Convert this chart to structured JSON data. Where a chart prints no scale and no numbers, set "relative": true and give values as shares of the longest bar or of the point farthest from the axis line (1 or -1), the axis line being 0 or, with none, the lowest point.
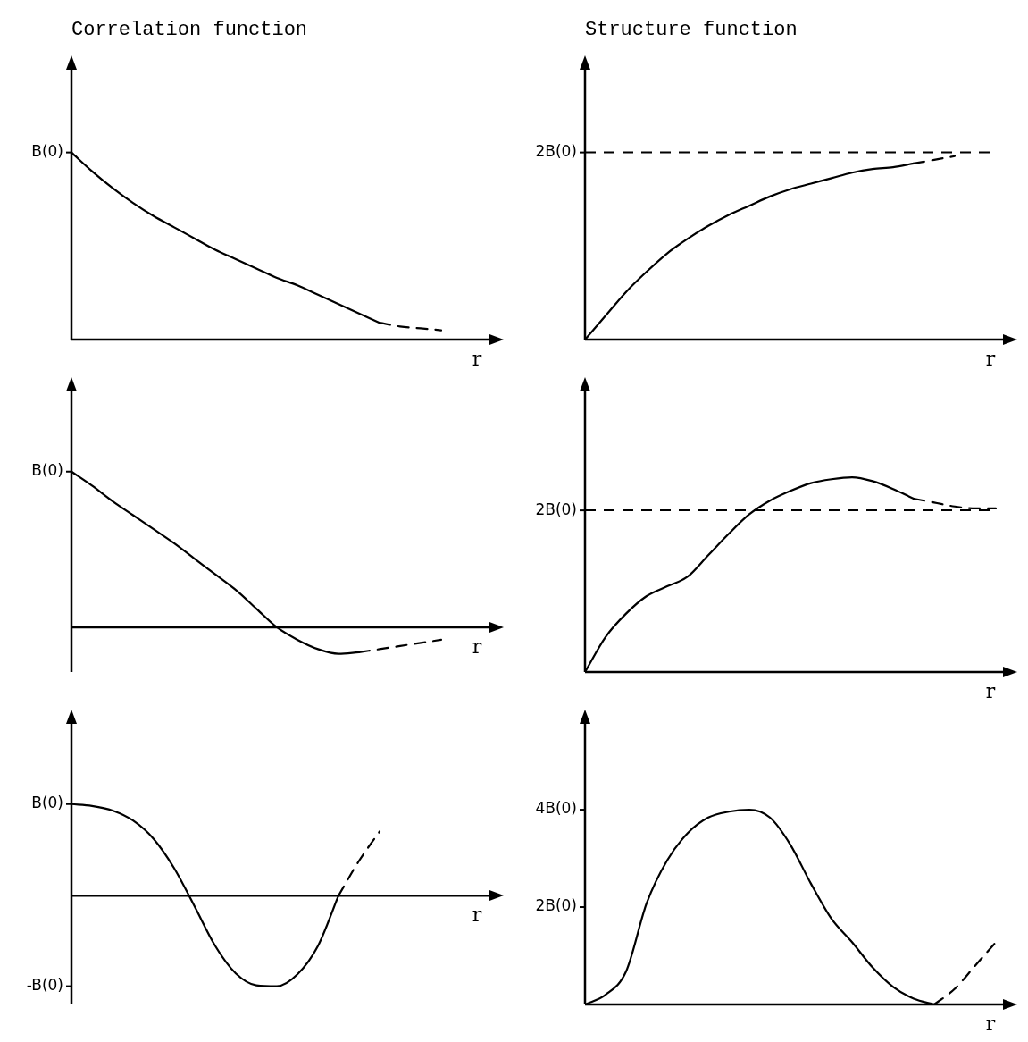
{
  "chart_data": [
    {
      "type": "line",
      "title": "Correlation function",
      "xlabel": "r",
      "relative": true,
      "categories": [
        null,
        null,
        null,
        null,
        null,
        null,
        null,
        null,
        null,
        null,
        null,
        null,
        null,
        null,
        null,
        null,
        null,
        null,
        null,
        null,
        null
      ],
      "series": [
        {
          "color": "#000000",
          "line_style": "solid",
          "values": [
            1.0,
            0.9,
            0.81,
            0.73,
            0.66,
            0.6,
            0.54,
            0.48,
            0.43,
            0.38,
            0.33,
            0.29,
            0.24,
            0.19,
            0.14,
            0.09,
            null,
            null,
            null,
            null,
            null
          ]
        },
        {
          "color": "#000000",
          "line_style": "dashed",
          "values": [
            null,
            null,
            null,
            null,
            null,
            null,
            null,
            null,
            null,
            null,
            null,
            null,
            null,
            null,
            null,
            0.09,
            0.07,
            0.06,
            0.05,
            null,
            null
          ]
        }
      ],
      "annotations": [
        "B(0)"
      ]
    },
    {
      "type": "line",
      "title": "Structure function",
      "xlabel": "r",
      "relative": true,
      "categories": [
        null,
        null,
        null,
        null,
        null,
        null,
        null,
        null,
        null,
        null,
        null,
        null,
        null,
        null,
        null,
        null,
        null,
        null,
        null,
        null,
        null
      ],
      "series": [
        {
          "color": "#000000",
          "line_style": "solid",
          "values": [
            0,
            0.13,
            0.26,
            0.37,
            0.47,
            0.55,
            0.62,
            0.68,
            0.73,
            0.78,
            0.82,
            0.85,
            0.88,
            0.91,
            0.93,
            0.94,
            0.96,
            null,
            null,
            null,
            null
          ]
        },
        {
          "color": "#000000",
          "line_style": "dashed",
          "values": [
            null,
            null,
            null,
            null,
            null,
            null,
            null,
            null,
            null,
            null,
            null,
            null,
            null,
            null,
            null,
            null,
            0.96,
            0.98,
            1.0,
            null,
            null
          ]
        }
      ],
      "ref_lines": [
        {
          "axis": "y",
          "value": 1.02,
          "label": "2B(0)",
          "line_style": "dashed",
          "color": "#000000"
        }
      ]
    },
    {
      "type": "line",
      "xlabel": "r",
      "relative": true,
      "categories": [
        null,
        null,
        null,
        null,
        null,
        null,
        null,
        null,
        null,
        null,
        null,
        null,
        null,
        null,
        null,
        null,
        null,
        null,
        null,
        null,
        null
      ],
      "series": [
        {
          "color": "#000000",
          "line_style": "solid",
          "values": [
            1.0,
            0.91,
            0.81,
            0.72,
            0.63,
            0.54,
            0.44,
            0.34,
            0.24,
            0.12,
            0.0,
            -0.08,
            -0.14,
            -0.17,
            -0.16,
            null,
            null,
            null,
            null,
            null,
            null
          ]
        },
        {
          "color": "#000000",
          "line_style": "dashed",
          "values": [
            null,
            null,
            null,
            null,
            null,
            null,
            null,
            null,
            null,
            null,
            null,
            null,
            null,
            null,
            -0.16,
            -0.14,
            -0.12,
            -0.1,
            -0.08,
            null,
            null
          ]
        }
      ],
      "annotations": [
        "B(0)"
      ]
    },
    {
      "type": "line",
      "xlabel": "r",
      "relative": true,
      "categories": [
        null,
        null,
        null,
        null,
        null,
        null,
        null,
        null,
        null,
        null,
        null,
        null,
        null,
        null,
        null,
        null,
        null,
        null,
        null,
        null,
        null
      ],
      "series": [
        {
          "color": "#000000",
          "line_style": "solid",
          "values": [
            0,
            0.18,
            0.3,
            0.39,
            0.44,
            0.49,
            0.6,
            0.71,
            0.81,
            0.88,
            0.93,
            0.97,
            0.99,
            1.0,
            0.98,
            0.94,
            0.89,
            null,
            null,
            null,
            null
          ]
        },
        {
          "color": "#000000",
          "line_style": "dashed",
          "values": [
            null,
            null,
            null,
            null,
            null,
            null,
            null,
            null,
            null,
            null,
            null,
            null,
            null,
            null,
            null,
            null,
            0.89,
            0.87,
            0.85,
            0.84,
            0.84
          ]
        }
      ],
      "ref_lines": [
        {
          "axis": "y",
          "value": 0.83,
          "label": "2B(0)",
          "line_style": "dashed",
          "color": "#000000"
        }
      ]
    },
    {
      "type": "line",
      "xlabel": "r",
      "relative": true,
      "categories": [
        null,
        null,
        null,
        null,
        null,
        null,
        null,
        null,
        null,
        null,
        null,
        null,
        null,
        null,
        null,
        null,
        null,
        null,
        null,
        null,
        null
      ],
      "series": [
        {
          "color": "#000000",
          "line_style": "solid",
          "values": [
            1.0,
            0.98,
            0.93,
            0.82,
            0.62,
            0.3,
            -0.12,
            -0.55,
            -0.85,
            -0.98,
            -0.99,
            -0.86,
            -0.55,
            0.0,
            null,
            null,
            null,
            null,
            null,
            null,
            null
          ]
        },
        {
          "color": "#000000",
          "line_style": "dashed",
          "values": [
            null,
            null,
            null,
            null,
            null,
            null,
            null,
            null,
            null,
            null,
            null,
            null,
            null,
            0.0,
            0.38,
            0.7,
            null,
            null,
            null,
            null,
            null
          ]
        }
      ],
      "annotations": [
        "B(0)",
        "-B(0)"
      ]
    },
    {
      "type": "line",
      "xlabel": "r",
      "relative": true,
      "categories": [
        null,
        null,
        null,
        null,
        null,
        null,
        null,
        null,
        null,
        null,
        null,
        null,
        null,
        null,
        null,
        null,
        null,
        null,
        null,
        null,
        null
      ],
      "series": [
        {
          "color": "#000000",
          "line_style": "solid",
          "values": [
            0,
            0.05,
            0.17,
            0.52,
            0.74,
            0.88,
            0.96,
            0.99,
            1.0,
            0.96,
            0.82,
            0.62,
            0.44,
            0.32,
            0.19,
            0.09,
            0.03,
            0.0,
            null,
            null,
            null
          ]
        },
        {
          "color": "#000000",
          "line_style": "dashed",
          "values": [
            null,
            null,
            null,
            null,
            null,
            null,
            null,
            null,
            null,
            null,
            null,
            null,
            null,
            null,
            null,
            null,
            null,
            0.0,
            0.08,
            0.2,
            0.32
          ]
        }
      ],
      "annotations": [
        "4B(0)",
        "2B(0)"
      ]
    }
  ]
}
